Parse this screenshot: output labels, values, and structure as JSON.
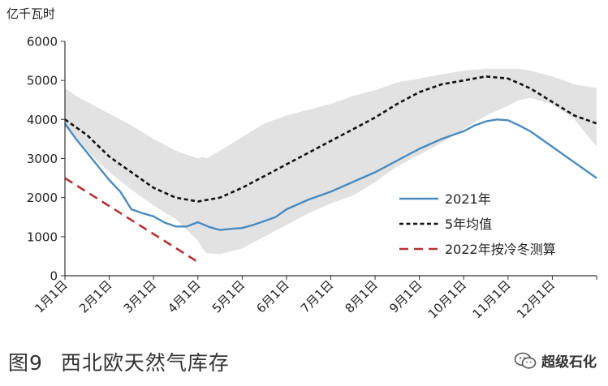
{
  "figure": {
    "number": "图9",
    "title": "西北欧天然气库存",
    "watermark": "超级石化"
  },
  "chart_data": {
    "type": "line",
    "ylabel": "亿千瓦时",
    "ylim": [
      0,
      6000
    ],
    "yticks": [
      0,
      1000,
      2000,
      3000,
      4000,
      5000,
      6000
    ],
    "x_domain": [
      0,
      12
    ],
    "x_categories": [
      "1月1日",
      "2月1日",
      "3月1日",
      "4月1日",
      "5月1日",
      "6月1日",
      "7月1日",
      "8月1日",
      "9月1日",
      "10月1日",
      "11月1日",
      "12月1日"
    ],
    "grid": false,
    "legend_position": "right-middle",
    "range_band": {
      "color": "#e2e2e2",
      "x": [
        0,
        0.25,
        0.5,
        1,
        1.5,
        2,
        2.5,
        3,
        3.1,
        3.2,
        3.5,
        4,
        4.5,
        5,
        5.5,
        6,
        6.5,
        7,
        7.5,
        8,
        8.5,
        9,
        9.5,
        10,
        10.25,
        10.5,
        11,
        11.5,
        12
      ],
      "upper": [
        4800,
        4600,
        4450,
        4150,
        3850,
        3500,
        3200,
        3000,
        3050,
        3000,
        3200,
        3550,
        3900,
        4100,
        4250,
        4400,
        4600,
        4750,
        4950,
        5050,
        5150,
        5250,
        5300,
        5300,
        5300,
        5250,
        5100,
        4900,
        4800
      ],
      "lower": [
        3800,
        3550,
        3200,
        2650,
        2200,
        1800,
        1450,
        900,
        700,
        580,
        550,
        700,
        1000,
        1300,
        1600,
        1850,
        2050,
        2400,
        2800,
        3100,
        3400,
        3750,
        4100,
        4350,
        4500,
        4550,
        4400,
        4000,
        3300
      ]
    },
    "series": [
      {
        "name": "2021年",
        "color": "#4a8bbf",
        "style": "solid",
        "x": [
          0,
          0.25,
          0.5,
          0.75,
          1,
          1.25,
          1.5,
          1.75,
          2,
          2.25,
          2.5,
          2.75,
          3,
          3.25,
          3.5,
          3.75,
          4,
          4.25,
          4.5,
          4.75,
          5,
          5.5,
          6,
          6.5,
          7,
          7.5,
          8,
          8.5,
          9,
          9.25,
          9.5,
          9.75,
          10,
          10.25,
          10.5,
          10.75,
          11,
          11.5,
          12
        ],
        "y": [
          3900,
          3500,
          3150,
          2800,
          2450,
          2150,
          1700,
          1600,
          1520,
          1360,
          1260,
          1260,
          1370,
          1250,
          1170,
          1200,
          1220,
          1300,
          1400,
          1500,
          1700,
          1950,
          2150,
          2400,
          2650,
          2950,
          3250,
          3500,
          3700,
          3850,
          3950,
          4000,
          3980,
          3850,
          3700,
          3500,
          3300,
          2900,
          2500
        ]
      },
      {
        "name": "5年均值",
        "color": "#111111",
        "style": "dotted",
        "x": [
          0,
          0.5,
          1,
          1.5,
          2,
          2.5,
          3,
          3.5,
          4,
          4.5,
          5,
          5.5,
          6,
          6.5,
          7,
          7.5,
          8,
          8.5,
          9,
          9.5,
          10,
          10.5,
          11,
          11.5,
          12
        ],
        "y": [
          4000,
          3600,
          3050,
          2650,
          2250,
          2000,
          1900,
          2000,
          2250,
          2550,
          2850,
          3150,
          3450,
          3750,
          4050,
          4400,
          4700,
          4900,
          5000,
          5100,
          5050,
          4800,
          4450,
          4100,
          3900
        ]
      },
      {
        "name": "2022年按冷冬测算",
        "color": "#b83232",
        "style": "dashed",
        "x": [
          0,
          3
        ],
        "y": [
          2500,
          350
        ]
      }
    ]
  }
}
